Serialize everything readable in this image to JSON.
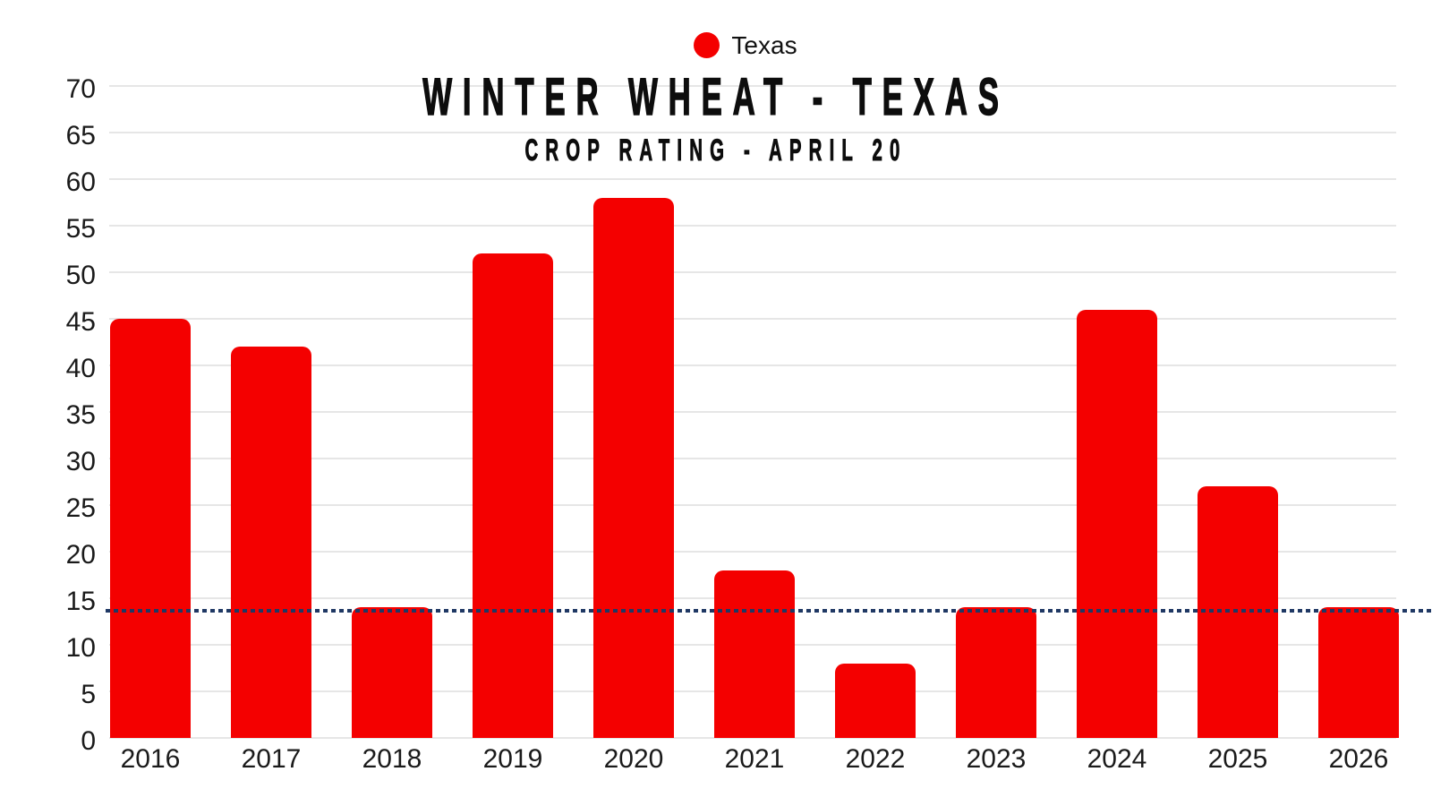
{
  "legend": {
    "label": "Texas",
    "dot_color": "#F40000",
    "position": "top-center"
  },
  "chart_data": {
    "type": "bar",
    "title": "WINTER WHEAT - TEXAS",
    "subtitle": "CROP RATING - APRIL 20",
    "categories": [
      "2016",
      "2017",
      "2018",
      "2019",
      "2020",
      "2021",
      "2022",
      "2023",
      "2024",
      "2025",
      "2026"
    ],
    "series": [
      {
        "name": "Texas",
        "color": "#F40000",
        "values": [
          45,
          42,
          14,
          52,
          58,
          18,
          8,
          14,
          46,
          27,
          14
        ]
      }
    ],
    "xlabel": "",
    "ylabel": "",
    "ylim": [
      0,
      70
    ],
    "ytick_step": 5,
    "ytick_labels": [
      "0",
      "5",
      "10",
      "15",
      "20",
      "25",
      "30",
      "35",
      "40",
      "45",
      "50",
      "55",
      "60",
      "65",
      "70"
    ],
    "grid": "horizontal-only",
    "legend_position": "top-center",
    "reference_line": {
      "value": 13.7,
      "style": "dotted",
      "color": "#1F3864",
      "extends_to_right_edge": true
    }
  },
  "colors": {
    "bar_red": "#F40000",
    "reference_navy": "#1F3864",
    "gridline_gray": "#E6E6E6",
    "text_black": "#111111",
    "background": "#FFFFFF"
  }
}
